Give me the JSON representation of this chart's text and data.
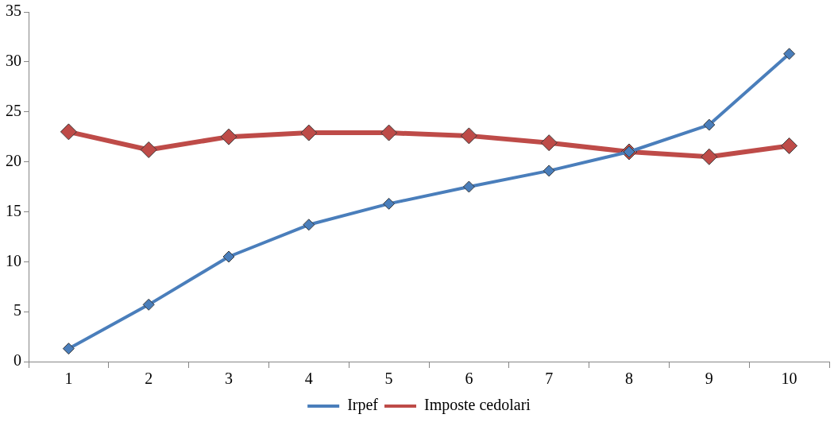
{
  "chart_data": {
    "type": "line",
    "categories": [
      "1",
      "2",
      "3",
      "4",
      "5",
      "6",
      "7",
      "8",
      "9",
      "10"
    ],
    "series": [
      {
        "name": "Irpef",
        "color": "#4a7ebb",
        "values": [
          1.3,
          5.7,
          10.5,
          13.7,
          15.8,
          17.5,
          19.1,
          21.0,
          23.7,
          30.8
        ]
      },
      {
        "name": "Imposte cedolari",
        "color": "#be4b48",
        "values": [
          23.0,
          21.2,
          22.5,
          22.9,
          22.9,
          22.6,
          21.9,
          21.0,
          20.5,
          21.6
        ]
      }
    ],
    "ylim": [
      0,
      35
    ],
    "yticks": [
      0,
      5,
      10,
      15,
      20,
      25,
      30,
      35
    ],
    "grid": false,
    "legend": "bottom",
    "marker": "diamond",
    "line_style": "solid"
  }
}
